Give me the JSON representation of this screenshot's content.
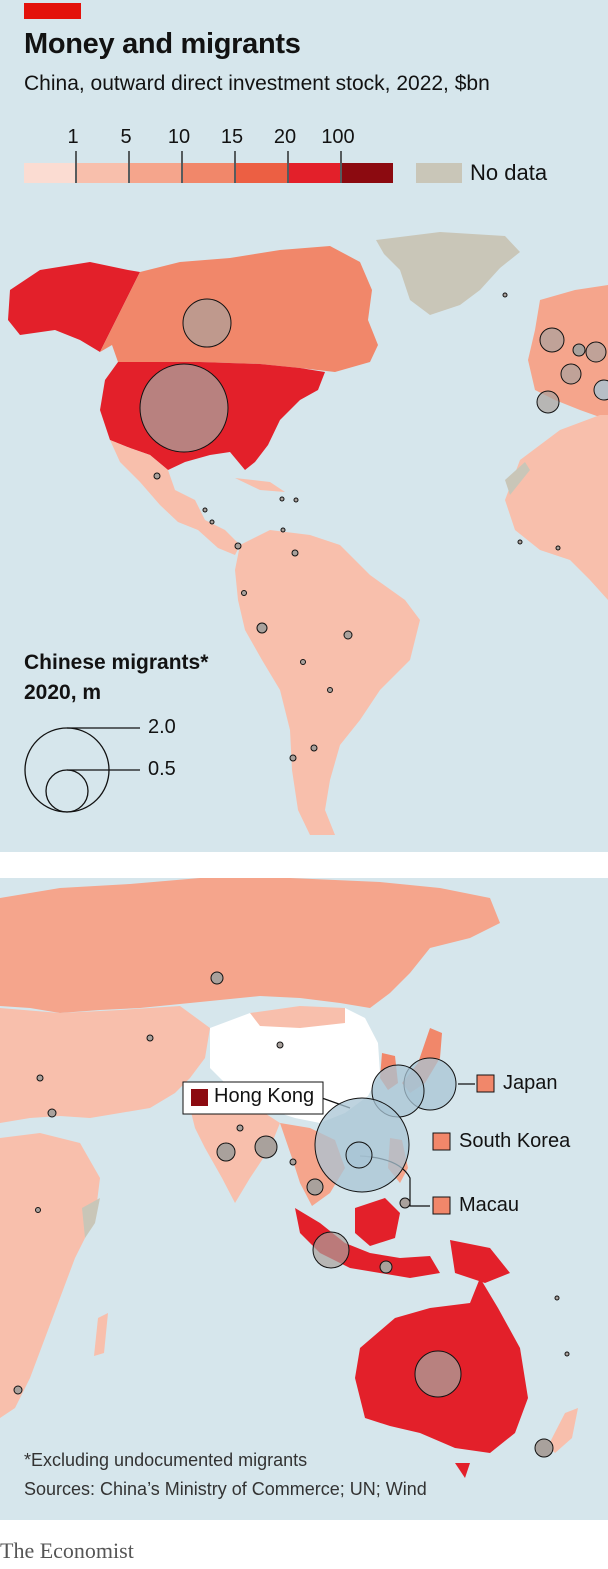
{
  "header": {
    "title": "Money and migrants",
    "subtitle": "China, outward direct investment stock, 2022, $bn"
  },
  "legend": {
    "ticks": [
      "1",
      "5",
      "10",
      "15",
      "20",
      "100"
    ],
    "bin_colors": [
      "#fbdcd2",
      "#f8bfac",
      "#f5a58c",
      "#f1876a",
      "#ec5f43",
      "#e3202a",
      "#8c0a10"
    ],
    "no_data_color": "#c9c6b8",
    "no_data_label": "No data"
  },
  "bubble_legend": {
    "title_line1": "Chinese migrants*",
    "title_line2": "2020, m",
    "sizes": [
      "2.0",
      "0.5"
    ]
  },
  "callouts": {
    "hong_kong": "Hong Kong",
    "japan": "Japan",
    "south_korea": "South Korea",
    "macau": "Macau"
  },
  "footer": {
    "note": "*Excluding undocumented migrants",
    "sources": "Sources: China’s Ministry of Commerce; UN; Wind",
    "brand": "The Economist"
  },
  "colors": {
    "ocean": "#d6e6ec",
    "bubble_fill": "#a9a19c",
    "bubble_blue": "#a8c4d4",
    "accent": "#e3120b"
  }
}
